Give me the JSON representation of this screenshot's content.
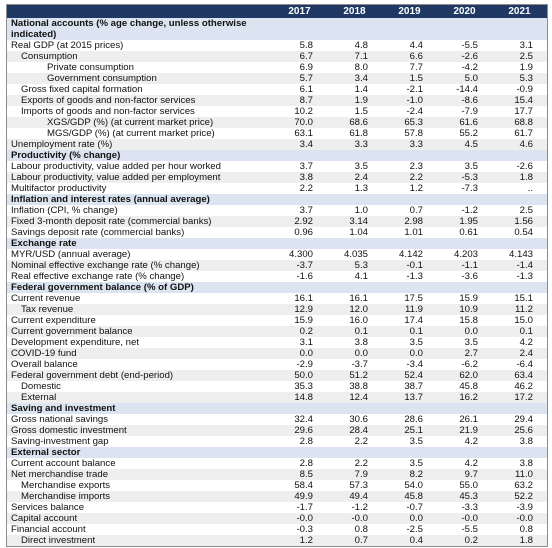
{
  "table": {
    "columns": [
      "2017",
      "2018",
      "2019",
      "2020",
      "2021"
    ],
    "sections": [
      {
        "title": "National accounts (% age change, unless otherwise indicated)",
        "rows": [
          {
            "label": "Real GDP (at 2015 prices)",
            "values": [
              "5.8",
              "4.8",
              "4.4",
              "-5.5",
              "3.1"
            ]
          },
          {
            "label": "Consumption",
            "values": [
              "6.7",
              "7.1",
              "6.6",
              "-2.6",
              "2.5"
            ]
          },
          {
            "label": "Private consumption",
            "values": [
              "6.9",
              "8.0",
              "7.7",
              "-4.2",
              "1.9"
            ]
          },
          {
            "label": "Government consumption",
            "values": [
              "5.7",
              "3.4",
              "1.5",
              "5.0",
              "5.3"
            ]
          },
          {
            "label": "Gross fixed capital formation",
            "values": [
              "6.1",
              "1.4",
              "-2.1",
              "-14.4",
              "-0.9"
            ]
          },
          {
            "label": "Exports of goods and non-factor services",
            "values": [
              "8.7",
              "1.9",
              "-1.0",
              "-8.6",
              "15.4"
            ]
          },
          {
            "label": "Imports of goods and non-factor services",
            "values": [
              "10.2",
              "1.5",
              "-2.4",
              "-7.9",
              "17.7"
            ]
          },
          {
            "label": "XGS/GDP (%) (at current market price)",
            "values": [
              "70.0",
              "68.6",
              "65.3",
              "61.6",
              "68.8"
            ]
          },
          {
            "label": "MGS/GDP (%) (at current market price)",
            "values": [
              "63.1",
              "61.8",
              "57.8",
              "55.2",
              "61.7"
            ]
          },
          {
            "label": "Unemployment rate (%)",
            "values": [
              "3.4",
              "3.3",
              "3.3",
              "4.5",
              "4.6"
            ]
          }
        ]
      },
      {
        "title": "Productivity (% change)",
        "rows": [
          {
            "label": "Labour productivity, value added per hour worked",
            "values": [
              "3.7",
              "3.5",
              "2.3",
              "3.5",
              "-2.6"
            ]
          },
          {
            "label": "Labour productivity, value added per employment",
            "values": [
              "3.8",
              "2.4",
              "2.2",
              "-5.3",
              "1.8"
            ]
          },
          {
            "label": "Multifactor productivity",
            "values": [
              "2.2",
              "1.3",
              "1.2",
              "-7.3",
              ".."
            ]
          }
        ]
      },
      {
        "title": "Inflation and interest rates (annual average)",
        "rows": [
          {
            "label": "Inflation (CPI, % change)",
            "values": [
              "3.7",
              "1.0",
              "0.7",
              "-1.2",
              "2.5"
            ]
          },
          {
            "label": "Fixed 3-month deposit rate (commercial banks)",
            "values": [
              "2.92",
              "3.14",
              "2.98",
              "1.95",
              "1.56"
            ]
          },
          {
            "label": "Savings deposit rate (commercial banks)",
            "values": [
              "0.96",
              "1.04",
              "1.01",
              "0.61",
              "0.54"
            ]
          }
        ]
      },
      {
        "title": "Exchange rate",
        "rows": [
          {
            "label": "MYR/USD (annual average)",
            "values": [
              "4.300",
              "4.035",
              "4.142",
              "4.203",
              "4.143"
            ]
          },
          {
            "label": "Nominal effective exchange rate (% change)",
            "values": [
              "-3.7",
              "5.3",
              "-0.1",
              "-1.1",
              "-1.4"
            ]
          },
          {
            "label": "Real effective exchange rate (% change)",
            "values": [
              "-1.6",
              "4.1",
              "-1.3",
              "-3.6",
              "-1.3"
            ]
          }
        ]
      },
      {
        "title": "Federal government balance (% of GDP)",
        "rows": [
          {
            "label": "Current revenue",
            "values": [
              "16.1",
              "16.1",
              "17.5",
              "15.9",
              "15.1"
            ]
          },
          {
            "label": "Tax revenue",
            "values": [
              "12.9",
              "12.0",
              "11.9",
              "10.9",
              "11.2"
            ]
          },
          {
            "label": "Current expenditure",
            "values": [
              "15.9",
              "16.0",
              "17.4",
              "15.8",
              "15.0"
            ]
          },
          {
            "label": "Current government balance",
            "values": [
              "0.2",
              "0.1",
              "0.1",
              "0.0",
              "0.1"
            ]
          },
          {
            "label": "Development expenditure, net",
            "values": [
              "3.1",
              "3.8",
              "3.5",
              "3.5",
              "4.2"
            ]
          },
          {
            "label": "COVID-19 fund",
            "values": [
              "0.0",
              "0.0",
              "0.0",
              "2.7",
              "2.4"
            ]
          },
          {
            "label": "Overall balance",
            "values": [
              "-2.9",
              "-3.7",
              "-3.4",
              "-6.2",
              "-6.4"
            ]
          },
          {
            "label": "Federal government debt (end-period)",
            "values": [
              "50.0",
              "51.2",
              "52.4",
              "62.0",
              "63.4"
            ]
          },
          {
            "label": "Domestic",
            "values": [
              "35.3",
              "38.8",
              "38.7",
              "45.8",
              "46.2"
            ]
          },
          {
            "label": "External",
            "values": [
              "14.8",
              "12.4",
              "13.7",
              "16.2",
              "17.2"
            ]
          }
        ]
      },
      {
        "title": "Saving and investment",
        "rows": [
          {
            "label": "Gross national savings",
            "values": [
              "32.4",
              "30.6",
              "28.6",
              "26.1",
              "29.4"
            ]
          },
          {
            "label": "Gross domestic investment",
            "values": [
              "29.6",
              "28.4",
              "25.1",
              "21.9",
              "25.6"
            ]
          },
          {
            "label": "Saving-investment gap",
            "values": [
              "2.8",
              "2.2",
              "3.5",
              "4.2",
              "3.8"
            ]
          }
        ]
      },
      {
        "title": "External sector",
        "rows": [
          {
            "label": "Current account balance",
            "values": [
              "2.8",
              "2.2",
              "3.5",
              "4.2",
              "3.8"
            ]
          },
          {
            "label": "Net merchandise trade",
            "values": [
              "8.5",
              "7.9",
              "8.2",
              "9.7",
              "11.0"
            ]
          },
          {
            "label": "Merchandise exports",
            "values": [
              "58.4",
              "57.3",
              "54.0",
              "55.0",
              "63.2"
            ]
          },
          {
            "label": "Merchandise imports",
            "values": [
              "49.9",
              "49.4",
              "45.8",
              "45.3",
              "52.2"
            ]
          },
          {
            "label": "Services balance",
            "values": [
              "-1.7",
              "-1.2",
              "-0.7",
              "-3.3",
              "-3.9"
            ]
          },
          {
            "label": "Capital account",
            "values": [
              "-0.0",
              "-0.0",
              "0.0",
              "-0.0",
              "-0.0"
            ]
          },
          {
            "label": "Financial account",
            "values": [
              "-0.3",
              "0.8",
              "-2.5",
              "-5.5",
              "0.8"
            ]
          },
          {
            "label": "Direct investment",
            "values": [
              "1.2",
              "0.7",
              "0.4",
              "0.2",
              "1.8"
            ]
          }
        ]
      }
    ]
  }
}
